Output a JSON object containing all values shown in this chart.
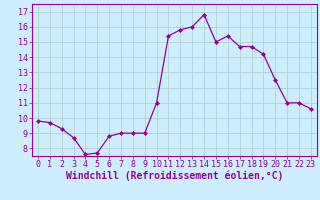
{
  "x": [
    0,
    1,
    2,
    3,
    4,
    5,
    6,
    7,
    8,
    9,
    10,
    11,
    12,
    13,
    14,
    15,
    16,
    17,
    18,
    19,
    20,
    21,
    22,
    23
  ],
  "y": [
    9.8,
    9.7,
    9.3,
    8.7,
    7.6,
    7.7,
    8.8,
    9.0,
    9.0,
    9.0,
    11.0,
    15.4,
    15.8,
    16.0,
    16.8,
    15.0,
    15.4,
    14.7,
    14.7,
    14.2,
    12.5,
    11.0,
    11.0,
    10.6
  ],
  "xlabel": "Windchill (Refroidissement éolien,°C)",
  "xlim": [
    -0.5,
    23.5
  ],
  "ylim": [
    7.5,
    17.5
  ],
  "yticks": [
    8,
    9,
    10,
    11,
    12,
    13,
    14,
    15,
    16,
    17
  ],
  "xticks": [
    0,
    1,
    2,
    3,
    4,
    5,
    6,
    7,
    8,
    9,
    10,
    11,
    12,
    13,
    14,
    15,
    16,
    17,
    18,
    19,
    20,
    21,
    22,
    23
  ],
  "line_color": "#990099",
  "marker": "D",
  "marker_size": 2.0,
  "bg_color": "#cceeff",
  "grid_color": "#aacccc",
  "tick_color": "#990099",
  "label_color": "#990099",
  "xlabel_fontsize": 7.0,
  "tick_fontsize": 6.0
}
